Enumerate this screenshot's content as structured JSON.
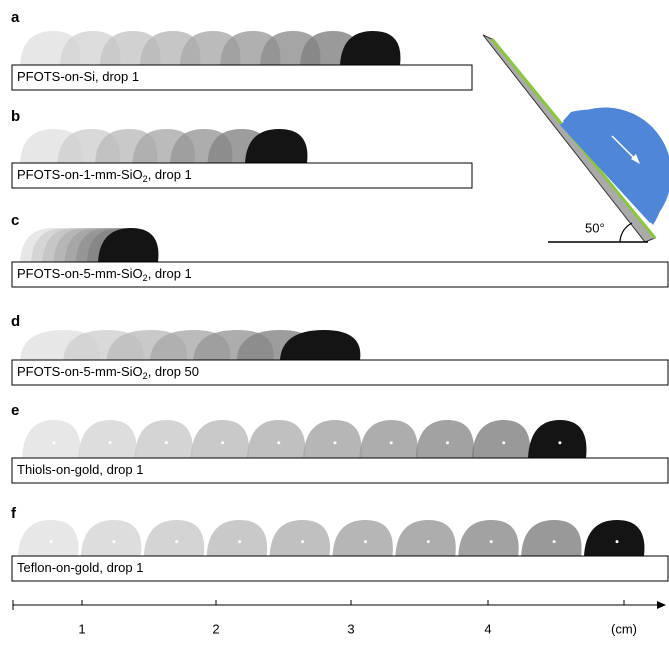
{
  "panels": [
    {
      "letter": "a",
      "label": {
        "text": "PFOTS-on-Si, drop 1"
      }
    },
    {
      "letter": "b",
      "label": {
        "text": "PFOTS-on-1-mm-SiO",
        "sub": "2",
        "tail": ", drop 1"
      }
    },
    {
      "letter": "c",
      "label": {
        "text": "PFOTS-on-5-mm-SiO",
        "sub": "2",
        "tail": ", drop 1"
      }
    },
    {
      "letter": "d",
      "label": {
        "text": "PFOTS-on-5-mm-SiO",
        "sub": "2",
        "tail": ", drop 50"
      }
    },
    {
      "letter": "e",
      "label": {
        "text": "Thiols-on-gold, drop 1"
      }
    },
    {
      "letter": "f",
      "label": {
        "text": "Teflon-on-gold, drop 1"
      }
    }
  ],
  "axis": {
    "ticks": [
      "1",
      "2",
      "3",
      "4"
    ],
    "unit": "(cm)"
  },
  "inset": {
    "angle": "50°"
  }
}
